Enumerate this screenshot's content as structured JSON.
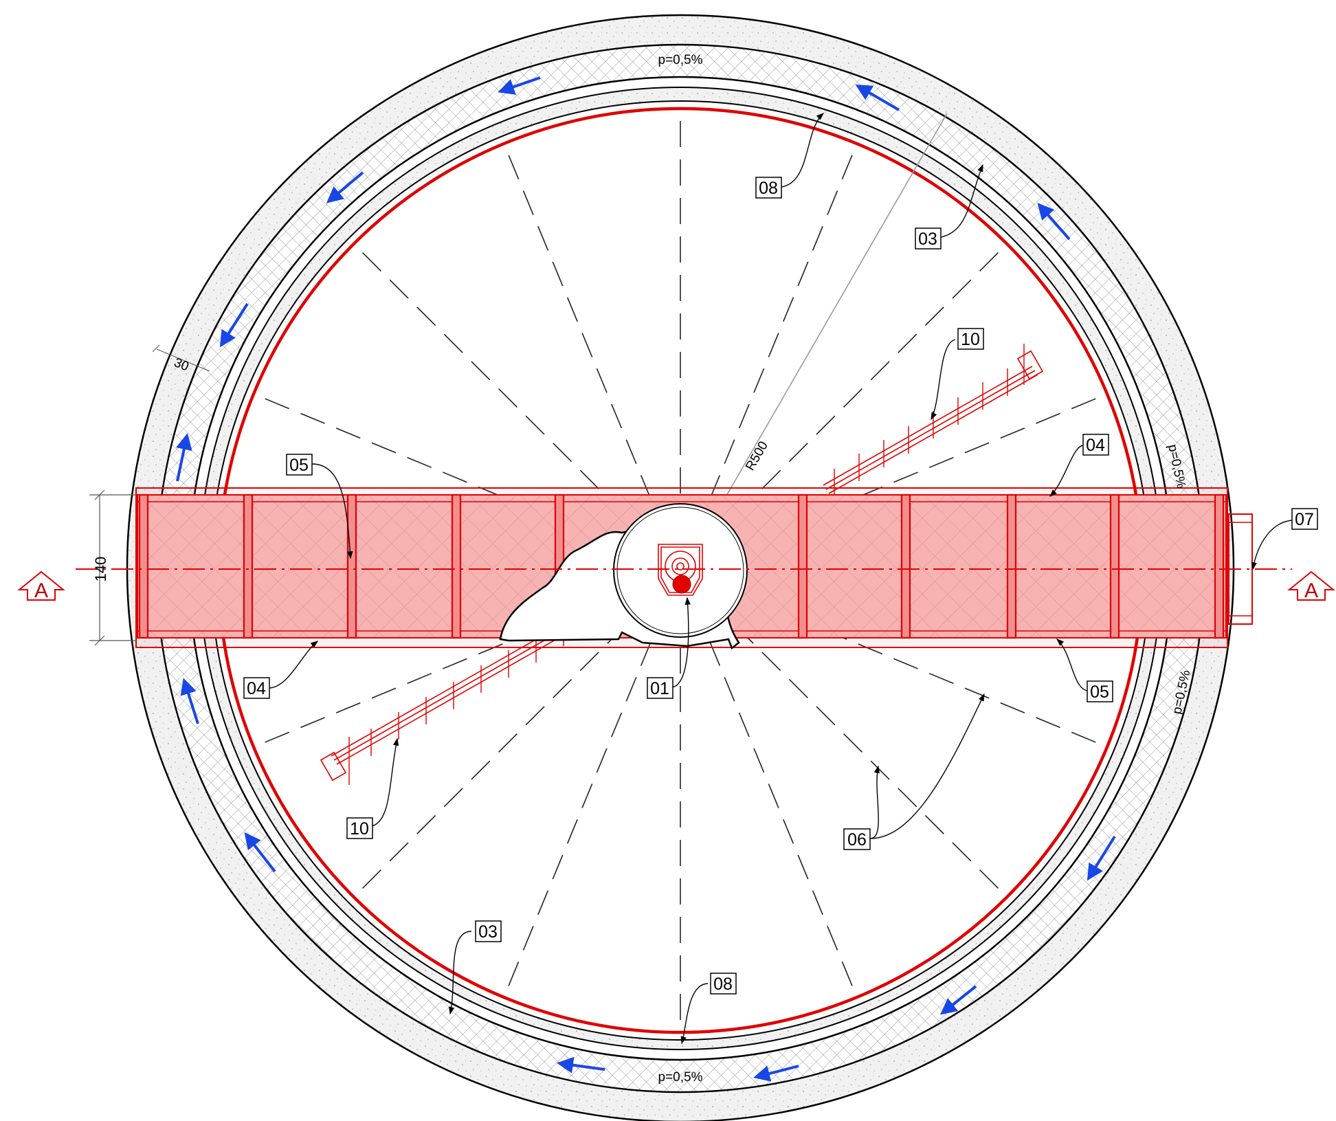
{
  "labels": {
    "l08_top": "08",
    "l03_top": "03",
    "l10_top": "10",
    "l05_left": "05",
    "l04_right": "04",
    "l07": "07",
    "l04_left": "04",
    "l01": "01",
    "l05_right": "05",
    "l10_bottom": "10",
    "l06": "06",
    "l03_bottom": "03",
    "l08_bottom": "08"
  },
  "annotations": {
    "slope_top": "p=0,5%",
    "slope_bottom": "p=0,5%",
    "slope_right_upper": "p=0,5%",
    "slope_right_lower": "p=0,5%",
    "radius": "R500",
    "dim_width": "140",
    "dim_wall": "30",
    "section_left": "A",
    "section_right": "A"
  },
  "colors": {
    "accent_red": "#e00000",
    "fill_red": "#f7a6a6",
    "flow_arrow_blue": "#1947e6",
    "ring_texture": "#d9d9d9"
  },
  "icons": {
    "flow_arrows": "blue-arrow-icon",
    "section_markers": "section-arrow-icon"
  }
}
